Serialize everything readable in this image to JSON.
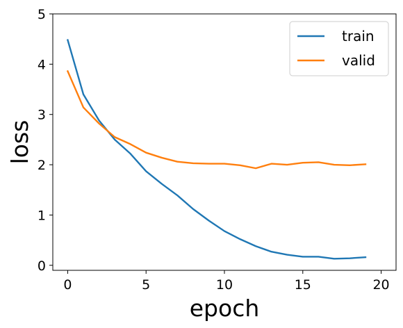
{
  "chart_data": {
    "type": "line",
    "title": "",
    "xlabel": "epoch",
    "ylabel": "loss",
    "xlim": [
      -0.95,
      20.95
    ],
    "ylim": [
      -0.1,
      5.0
    ],
    "xticks": [
      "0",
      "5",
      "10",
      "15",
      "20"
    ],
    "yticks": [
      "0",
      "1",
      "2",
      "3",
      "4",
      "5"
    ],
    "grid": false,
    "legend_position": "top-right",
    "x": [
      0,
      1,
      2,
      3,
      4,
      5,
      6,
      7,
      8,
      9,
      10,
      11,
      12,
      13,
      14,
      15,
      16,
      17,
      18,
      19
    ],
    "series": [
      {
        "name": "train",
        "color": "#1f77b4",
        "values": [
          4.48,
          3.4,
          2.88,
          2.5,
          2.22,
          1.87,
          1.62,
          1.39,
          1.12,
          0.89,
          0.68,
          0.52,
          0.38,
          0.27,
          0.21,
          0.17,
          0.17,
          0.13,
          0.14,
          0.16
        ]
      },
      {
        "name": "valid",
        "color": "#ff7f0e",
        "values": [
          3.86,
          3.14,
          2.82,
          2.55,
          2.41,
          2.24,
          2.14,
          2.06,
          2.03,
          2.02,
          2.02,
          1.99,
          1.93,
          2.02,
          2.0,
          2.04,
          2.05,
          2.0,
          1.99,
          2.01
        ]
      }
    ]
  }
}
